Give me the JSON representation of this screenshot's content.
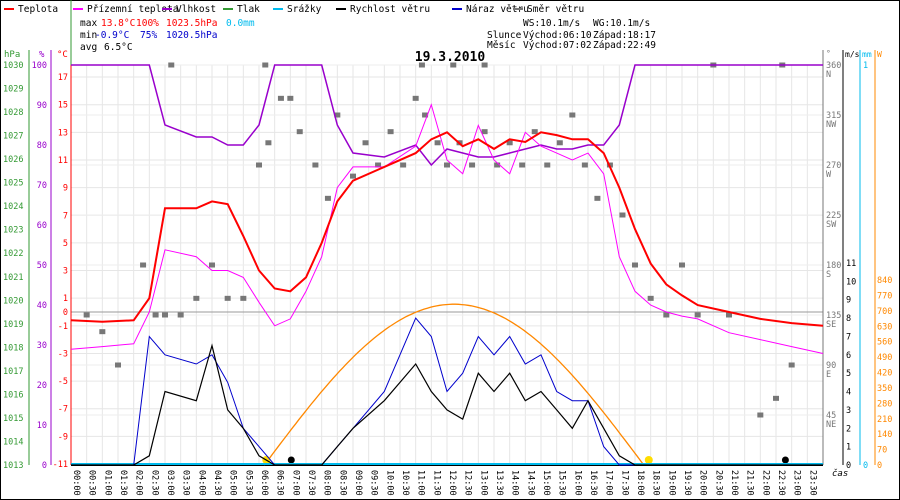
{
  "chart_data": {
    "type": "line",
    "title": "19.3.2010",
    "xlabel": "čas",
    "legend": [
      {
        "name": "Teplota",
        "color": "#ff0000"
      },
      {
        "name": "Přízemní teplota",
        "color": "#ff00ff"
      },
      {
        "name": "Vlhkost",
        "color": "#9900cc"
      },
      {
        "name": "Tlak",
        "color": "#339933"
      },
      {
        "name": "Srážky",
        "color": "#00bbee"
      },
      {
        "name": "Rychlost větru",
        "color": "#000000"
      },
      {
        "name": "Náraz větru",
        "color": "#0000cc"
      },
      {
        "name": "Směr větru",
        "color": "#777777"
      }
    ],
    "stats": {
      "max": {
        "label": "max",
        "temp": "13.8°C",
        "hum": "100%",
        "press": "1023.5hPa",
        "rain": "0.0mm"
      },
      "min": {
        "label": "min",
        "temp": "-0.9°C",
        "hum": "75%",
        "press": "1020.5hPa"
      },
      "avg": {
        "label": "avg",
        "temp": "6.5°C"
      }
    },
    "info": {
      "ws": "WS:10.1m/s",
      "wg": "WG:10.1m/s",
      "sun_label": "Slunce",
      "sun_rise": "Východ:06:10",
      "sun_set": "Západ:18:17",
      "moon_label": "Měsíc",
      "moon_rise": "Východ:07:02",
      "moon_set": "Západ:22:49"
    },
    "axes": {
      "press": {
        "unit": "hPa",
        "ticks": [
          "1030",
          "1029",
          "1028",
          "1027",
          "1026",
          "1025",
          "1024",
          "1023",
          "1022",
          "1021",
          "1020",
          "1019",
          "1018",
          "1017",
          "1016",
          "1015",
          "1014",
          "1013"
        ],
        "range": [
          1013,
          1030
        ]
      },
      "hum": {
        "unit": "%",
        "ticks": [
          "100",
          "90",
          "80",
          "70",
          "60",
          "50",
          "40",
          "30",
          "20",
          "10",
          "0"
        ],
        "range": [
          0,
          100
        ]
      },
      "temp": {
        "unit": "°C",
        "ticks": [
          "17",
          "15",
          "13",
          "11",
          "9",
          "7",
          "5",
          "3",
          "1",
          "0",
          "-1",
          "-3",
          "-5",
          "-7",
          "-9",
          "-11"
        ],
        "range": [
          -11,
          17
        ]
      },
      "dir": {
        "unit": "°",
        "ticks": [
          [
            "360",
            "N"
          ],
          [
            "315",
            "NW"
          ],
          [
            "270",
            "W"
          ],
          [
            "225",
            "SW"
          ],
          [
            "180",
            "S"
          ],
          [
            "135",
            "SE"
          ],
          [
            "90",
            "E"
          ],
          [
            "45",
            "NE"
          ]
        ],
        "range": [
          0,
          360
        ]
      },
      "wind": {
        "unit": "m/s",
        "ticks": [
          "11",
          "10",
          "9",
          "8",
          "7",
          "6",
          "5",
          "4",
          "3",
          "2",
          "1",
          "0"
        ],
        "range": [
          0,
          11
        ]
      },
      "rain": {
        "unit": "mm",
        "ticks": [
          "1",
          "0"
        ],
        "range": [
          0,
          1
        ]
      },
      "solar": {
        "unit": "W",
        "ticks": [
          "840",
          "770",
          "700",
          "630",
          "560",
          "490",
          "420",
          "350",
          "280",
          "210",
          "140",
          "70",
          "0"
        ],
        "range": [
          0,
          840
        ]
      }
    },
    "x_ticks": [
      "00:00",
      "00:30",
      "01:00",
      "01:30",
      "02:00",
      "02:30",
      "03:00",
      "03:30",
      "04:00",
      "04:30",
      "05:00",
      "05:30",
      "06:00",
      "06:30",
      "07:00",
      "07:30",
      "08:00",
      "08:30",
      "09:00",
      "09:30",
      "10:00",
      "10:30",
      "11:00",
      "11:30",
      "12:00",
      "12:30",
      "13:00",
      "13:30",
      "14:00",
      "14:30",
      "15:00",
      "15:30",
      "16:00",
      "16:30",
      "17:00",
      "17:30",
      "18:00",
      "18:30",
      "19:00",
      "19:30",
      "20:00",
      "20:30",
      "21:00",
      "21:30",
      "22:00",
      "22:30",
      "23:00",
      "23:30"
    ],
    "x_hours": [
      0,
      1,
      2,
      2.5,
      3,
      4,
      4.5,
      5,
      5.5,
      6,
      6.5,
      7,
      7.5,
      8,
      8.5,
      9,
      10,
      11,
      11.5,
      12,
      12.5,
      13,
      13.5,
      14,
      14.5,
      15,
      15.5,
      16,
      16.5,
      17,
      17.5,
      18,
      18.5,
      19,
      19.5,
      20,
      21,
      22,
      23,
      24
    ],
    "series": [
      {
        "name": "Teplota",
        "axis": "temp",
        "values": [
          -0.6,
          -0.7,
          -0.6,
          1,
          7.5,
          7.5,
          8,
          7.8,
          5.5,
          3,
          1.7,
          1.5,
          2.5,
          5,
          8,
          9.5,
          10.5,
          11.5,
          12.5,
          13,
          12,
          12.5,
          11.8,
          12.5,
          12.3,
          13,
          12.8,
          12.5,
          12.5,
          11.5,
          9,
          6,
          3.5,
          2,
          1.2,
          0.5,
          0,
          -0.5,
          -0.8,
          -1
        ]
      },
      {
        "name": "Přízemní teplota",
        "axis": "temp",
        "values": [
          -2.7,
          -2.5,
          -2.3,
          0,
          4.5,
          4,
          3,
          3,
          2.5,
          0.7,
          -1,
          -0.5,
          1.5,
          4,
          9,
          10.5,
          10.5,
          12,
          15,
          11,
          10,
          13.5,
          11,
          10,
          13,
          12,
          11.5,
          11,
          11.5,
          10,
          4,
          1.5,
          0.5,
          0,
          -0.3,
          -0.5,
          -1.5,
          -2,
          -2.5,
          -3
        ]
      },
      {
        "name": "Vlhkost",
        "axis": "hum",
        "values": [
          100,
          100,
          100,
          100,
          85,
          82,
          82,
          80,
          80,
          85,
          100,
          100,
          100,
          100,
          85,
          78,
          77,
          80,
          75,
          79,
          78,
          77,
          77,
          78,
          79,
          80,
          79,
          79,
          80,
          80,
          85,
          100,
          100,
          100,
          100,
          100,
          100,
          100,
          100,
          100
        ]
      },
      {
        "name": "Rychlost větru",
        "axis": "wind",
        "values": [
          0,
          0,
          0,
          0.5,
          4,
          3.5,
          6.5,
          3,
          2,
          0.5,
          0,
          0,
          0,
          0,
          1,
          2,
          3.5,
          5.5,
          4,
          3,
          2.5,
          5,
          4,
          5,
          3.5,
          4,
          3,
          2,
          3.5,
          2,
          0.5,
          0,
          0,
          0,
          0,
          0,
          0,
          0,
          0,
          0
        ]
      },
      {
        "name": "Náraz větru",
        "axis": "wind",
        "values": [
          0,
          0,
          0,
          7,
          6,
          5.5,
          6,
          4.5,
          2,
          1,
          0,
          0,
          0,
          0,
          1,
          2,
          4,
          8,
          7,
          4,
          5,
          7,
          6,
          7,
          5.5,
          6,
          4,
          3.5,
          3.5,
          1,
          0,
          0,
          0,
          0,
          0,
          0,
          0,
          0,
          0,
          0
        ]
      }
    ],
    "solar": {
      "name": "Sluneční záření",
      "axis": "solar",
      "rise_h": 6.17,
      "set_h": 18.28,
      "peak_w": 730
    },
    "wind_dir": {
      "name": "Směr větru",
      "points": [
        [
          2.3,
          180
        ],
        [
          2.7,
          135
        ],
        [
          3,
          135
        ],
        [
          3.5,
          135
        ],
        [
          4,
          150
        ],
        [
          4.5,
          180
        ],
        [
          5,
          150
        ],
        [
          5.5,
          150
        ],
        [
          6,
          270
        ],
        [
          6.3,
          290
        ],
        [
          6.7,
          330
        ],
        [
          7,
          330
        ],
        [
          7.3,
          300
        ],
        [
          7.8,
          270
        ],
        [
          8.2,
          240
        ],
        [
          8.5,
          315
        ],
        [
          9,
          260
        ],
        [
          9.4,
          290
        ],
        [
          9.8,
          270
        ],
        [
          10.2,
          300
        ],
        [
          10.6,
          270
        ],
        [
          11,
          330
        ],
        [
          11.3,
          315
        ],
        [
          11.7,
          290
        ],
        [
          12,
          270
        ],
        [
          12.4,
          290
        ],
        [
          12.8,
          270
        ],
        [
          13.2,
          300
        ],
        [
          13.6,
          270
        ],
        [
          14,
          290
        ],
        [
          14.4,
          270
        ],
        [
          14.8,
          300
        ],
        [
          15.2,
          270
        ],
        [
          15.6,
          290
        ],
        [
          16,
          315
        ],
        [
          16.4,
          270
        ],
        [
          16.8,
          240
        ],
        [
          17.2,
          270
        ],
        [
          17.6,
          225
        ],
        [
          18,
          180
        ],
        [
          18.5,
          150
        ],
        [
          19,
          135
        ],
        [
          19.5,
          180
        ],
        [
          20,
          135
        ],
        [
          21,
          135
        ],
        [
          22,
          45
        ],
        [
          22.5,
          60
        ],
        [
          23,
          90
        ],
        [
          0.5,
          135
        ],
        [
          1,
          120
        ],
        [
          1.5,
          90
        ],
        [
          3.2,
          360
        ],
        [
          6.2,
          360
        ],
        [
          11.2,
          360
        ],
        [
          12.2,
          360
        ],
        [
          13.2,
          360
        ],
        [
          20.5,
          360
        ],
        [
          22.7,
          360
        ]
      ]
    },
    "rain_total": 0.0
  }
}
